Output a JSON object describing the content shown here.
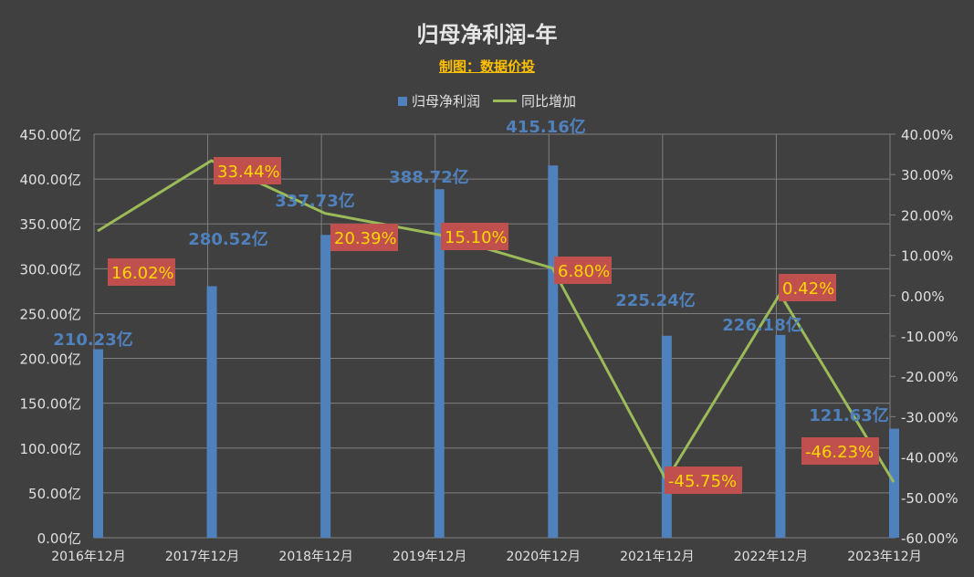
{
  "chart_data": {
    "type": "bar+line",
    "title": "归母净利润-年",
    "subtitle": "制图：数据价投",
    "categories": [
      "2016年12月",
      "2017年12月",
      "2018年12月",
      "2019年12月",
      "2020年12月",
      "2021年12月",
      "2022年12月",
      "2023年12月"
    ],
    "series": [
      {
        "name": "归母净利润",
        "type": "bar",
        "axis": "left",
        "values": [
          210.23,
          280.52,
          337.73,
          388.72,
          415.16,
          225.24,
          226.18,
          121.63
        ],
        "labels": [
          "210.23亿",
          "280.52亿",
          "337.73亿",
          "388.72亿",
          "415.16亿",
          "225.24亿",
          "226.18亿",
          "121.63亿"
        ],
        "color": "#4f81bd"
      },
      {
        "name": "同比增加",
        "type": "line",
        "axis": "right",
        "values": [
          16.02,
          33.44,
          20.39,
          15.1,
          6.8,
          -45.75,
          0.42,
          -46.23
        ],
        "labels": [
          "16.02%",
          "33.44%",
          "20.39%",
          "15.10%",
          "6.80%",
          "-45.75%",
          "0.42%",
          "-46.23%"
        ],
        "color": "#9bbb59"
      }
    ],
    "left_axis": {
      "ylim": [
        0,
        450
      ],
      "ticks": [
        "0.00亿",
        "50.00亿",
        "100.00亿",
        "150.00亿",
        "200.00亿",
        "250.00亿",
        "300.00亿",
        "350.00亿",
        "400.00亿",
        "450.00亿"
      ]
    },
    "right_axis": {
      "ylim": [
        -60,
        40
      ],
      "ticks": [
        "-60.00%",
        "-50.00%",
        "-40.00%",
        "-30.00%",
        "-20.00%",
        "-10.00%",
        "0.00%",
        "10.00%",
        "20.00%",
        "30.00%",
        "40.00%"
      ]
    },
    "grid": true,
    "legend": "top",
    "colors": {
      "background": "#404040",
      "label_box": "#c0504d",
      "label_text": "#ffd700"
    }
  }
}
